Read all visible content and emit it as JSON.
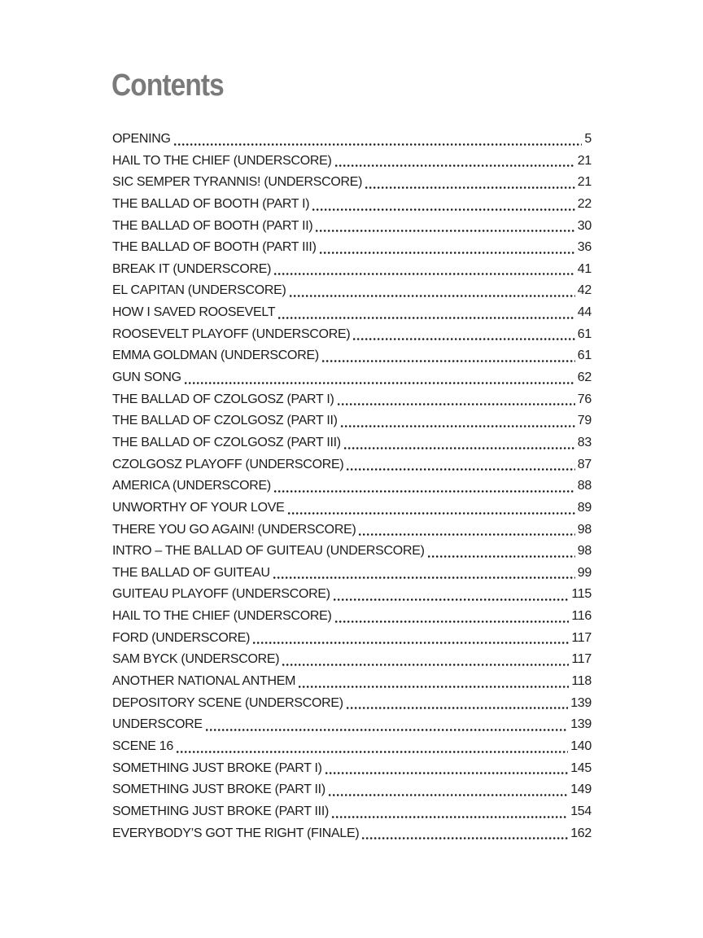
{
  "page": {
    "title": "Contents"
  },
  "colors": {
    "heading_gray": "#7a7a7a",
    "body_text": "#1c1c1c",
    "background": "#ffffff"
  },
  "toc": {
    "entries": [
      {
        "title": "OPENING",
        "page": "5"
      },
      {
        "title": "HAIL TO THE CHIEF (UNDERSCORE)",
        "page": "21"
      },
      {
        "title": "SIC SEMPER TYRANNIS! (UNDERSCORE)",
        "page": "21"
      },
      {
        "title": "THE BALLAD OF BOOTH (PART I)",
        "page": "22"
      },
      {
        "title": "THE BALLAD OF BOOTH (PART II)",
        "page": "30"
      },
      {
        "title": "THE BALLAD OF BOOTH (PART III)",
        "page": "36"
      },
      {
        "title": "BREAK IT (UNDERSCORE)",
        "page": "41"
      },
      {
        "title": "EL CAPITAN (UNDERSCORE)",
        "page": "42"
      },
      {
        "title": "HOW I SAVED ROOSEVELT",
        "page": "44"
      },
      {
        "title": "ROOSEVELT PLAYOFF (UNDERSCORE)",
        "page": "61"
      },
      {
        "title": "EMMA GOLDMAN (UNDERSCORE)",
        "page": "61"
      },
      {
        "title": "GUN SONG",
        "page": "62"
      },
      {
        "title": "THE BALLAD OF CZOLGOSZ (PART I)",
        "page": "76"
      },
      {
        "title": "THE BALLAD OF CZOLGOSZ (PART II)",
        "page": "79"
      },
      {
        "title": "THE BALLAD OF CZOLGOSZ (PART III)",
        "page": "83"
      },
      {
        "title": "CZOLGOSZ PLAYOFF (UNDERSCORE)",
        "page": "87"
      },
      {
        "title": "AMERICA (UNDERSCORE)",
        "page": "88"
      },
      {
        "title": "UNWORTHY OF YOUR LOVE",
        "page": "89"
      },
      {
        "title": "THERE YOU GO AGAIN! (UNDERSCORE)",
        "page": "98"
      },
      {
        "title": "INTRO – THE BALLAD OF GUITEAU (UNDERSCORE)",
        "page": "98"
      },
      {
        "title": "THE BALLAD OF GUITEAU",
        "page": "99"
      },
      {
        "title": "GUITEAU PLAYOFF (UNDERSCORE)",
        "page": "115"
      },
      {
        "title": "HAIL TO THE CHIEF (UNDERSCORE)",
        "page": "116"
      },
      {
        "title": "FORD (UNDERSCORE)",
        "page": "117"
      },
      {
        "title": "SAM BYCK (UNDERSCORE)",
        "page": "117"
      },
      {
        "title": "ANOTHER NATIONAL ANTHEM",
        "page": "118"
      },
      {
        "title": "DEPOSITORY SCENE (UNDERSCORE)",
        "page": "139"
      },
      {
        "title": "UNDERSCORE",
        "page": "139"
      },
      {
        "title": "SCENE 16",
        "page": "140"
      },
      {
        "title": "SOMETHING JUST BROKE (PART I)",
        "page": "145"
      },
      {
        "title": "SOMETHING JUST BROKE (PART II)",
        "page": "149"
      },
      {
        "title": "SOMETHING JUST BROKE (PART III)",
        "page": "154"
      },
      {
        "title": "EVERYBODY’S GOT THE RIGHT (FINALE)",
        "page": "162"
      }
    ]
  }
}
